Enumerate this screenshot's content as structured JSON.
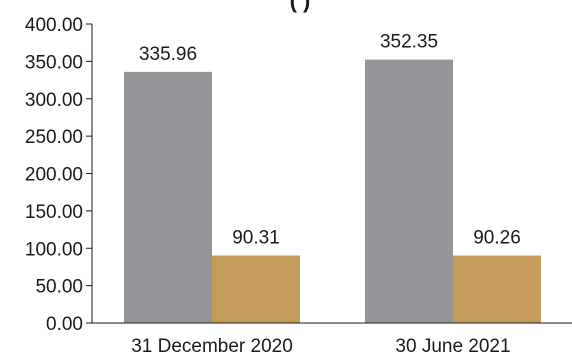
{
  "chart_data": {
    "type": "bar",
    "title_fragment": "(                    )",
    "categories": [
      "31 December 2020",
      "30 June 2021"
    ],
    "series": [
      {
        "values": [
          335.96,
          352.35
        ],
        "labels": [
          "335.96",
          "352.35"
        ],
        "color": "#939598"
      },
      {
        "values": [
          90.31,
          90.26
        ],
        "labels": [
          "90.31",
          "90.26"
        ],
        "color": "#c69c5d"
      }
    ],
    "ylim": [
      0,
      400
    ],
    "yticks": [
      "0.00",
      "50.00",
      "100.00",
      "150.00",
      "200.00",
      "250.00",
      "300.00",
      "350.00",
      "400.00"
    ],
    "grid": false,
    "xlabel": "",
    "ylabel": ""
  }
}
